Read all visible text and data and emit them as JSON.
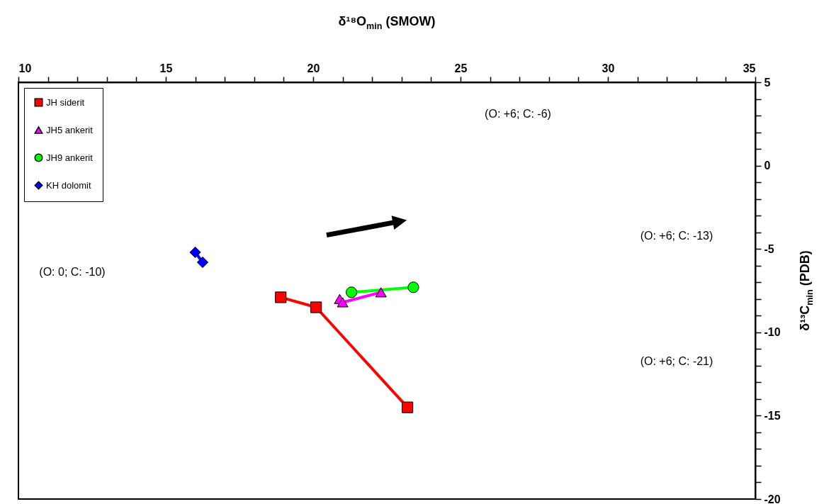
{
  "chart_data": {
    "type": "line",
    "xlabel": "δ¹⁸O$_{min}$ (SMOW)",
    "ylabel": "δ¹³C$_{min}$ (PDB)",
    "xlim": [
      10,
      35
    ],
    "ylim": [
      -20,
      5
    ],
    "xticks": [
      10,
      {
        "value": 11,
        "label": null
      },
      {
        "value": 12,
        "label": null
      },
      {
        "value": 13,
        "label": null
      },
      {
        "value": 14,
        "label": null
      },
      15,
      {
        "value": 16,
        "label": null
      },
      {
        "value": 17,
        "label": null
      },
      {
        "value": 18,
        "label": null
      },
      {
        "value": 19,
        "label": null
      },
      20,
      {
        "value": 21,
        "label": null
      },
      {
        "value": 22,
        "label": null
      },
      {
        "value": 23,
        "label": null
      },
      {
        "value": 24,
        "label": null
      },
      25,
      {
        "value": 26,
        "label": null
      },
      {
        "value": 27,
        "label": null
      },
      {
        "value": 28,
        "label": null
      },
      {
        "value": 29,
        "label": null
      },
      30,
      {
        "value": 31,
        "label": null
      },
      {
        "value": 32,
        "label": null
      },
      {
        "value": 33,
        "label": null
      },
      {
        "value": 34,
        "label": null
      },
      35
    ],
    "yticks": [
      -20,
      {
        "value": -19,
        "label": null
      },
      {
        "value": -18,
        "label": null
      },
      {
        "value": -17,
        "label": null
      },
      {
        "value": -16,
        "label": null
      },
      -15,
      {
        "value": -14,
        "label": null
      },
      {
        "value": -13,
        "label": null
      },
      {
        "value": -12,
        "label": null
      },
      {
        "value": -11,
        "label": null
      },
      -10,
      {
        "value": -9,
        "label": null
      },
      {
        "value": -8,
        "label": null
      },
      {
        "value": -7,
        "label": null
      },
      {
        "value": -6,
        "label": null
      },
      -5,
      {
        "value": -4,
        "label": null
      },
      {
        "value": -3,
        "label": null
      },
      {
        "value": -2,
        "label": null
      },
      {
        "value": -1,
        "label": null
      },
      0,
      {
        "value": 1,
        "label": null
      },
      {
        "value": 2,
        "label": null
      },
      {
        "value": 3,
        "label": null
      },
      {
        "value": 4,
        "label": null
      },
      5
    ],
    "legend": "top left",
    "grid": false,
    "series": [
      {
        "name": "JH siderit",
        "color": "#ff0000",
        "marker": "square",
        "x": [
          18.9,
          20.1,
          23.2
        ],
        "values": [
          -7.9,
          -8.5,
          -14.5
        ]
      },
      {
        "name": "JH5 ankerit",
        "color": "#ff00ff",
        "marker": "triangle",
        "x": [
          20.9,
          21.0,
          22.3
        ],
        "values": [
          -8.0,
          -8.2,
          -7.6
        ]
      },
      {
        "name": "JH9 ankerit",
        "color": "#00ff00",
        "marker": "circle",
        "x": [
          21.3,
          23.4
        ],
        "values": [
          -7.6,
          -7.3
        ]
      },
      {
        "name": "KH dolomit",
        "color": "#0000ff",
        "marker": "diamond",
        "x": [
          16.0,
          16.25
        ],
        "values": [
          -5.2,
          -5.8
        ]
      }
    ],
    "annotations": [
      "(O: +6; C: -6)",
      "(O: +6; C: -13)",
      "(O: 0; C: -10)",
      "(O: +6; C: -21)"
    ]
  }
}
